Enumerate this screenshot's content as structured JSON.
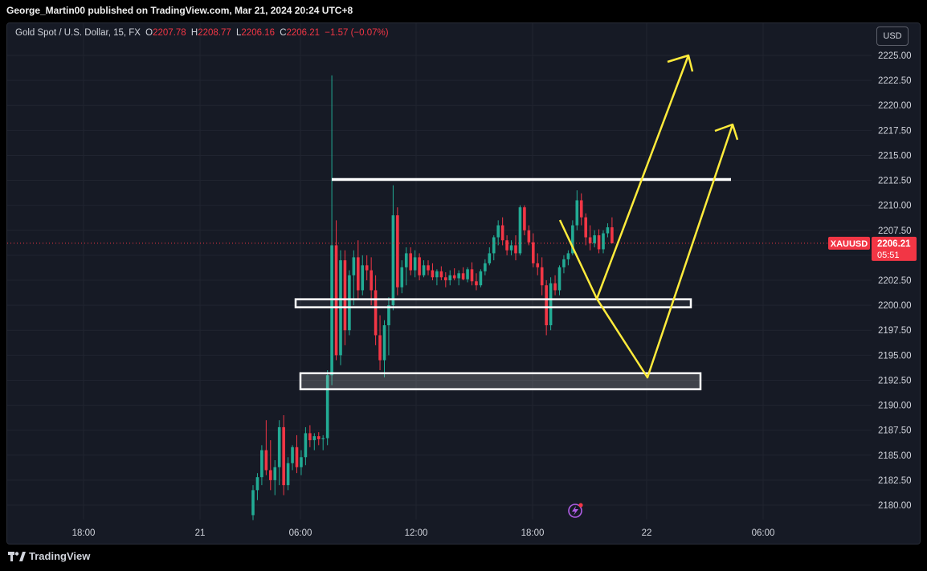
{
  "header": {
    "published_by": "George_Martin00 published on TradingView.com, Mar 21, 2024 20:24 UTC+8"
  },
  "legend": {
    "instrument": "Gold Spot / U.S. Dollar, 15, FX",
    "open_label": "O",
    "open": "2207.78",
    "high_label": "H",
    "high": "2208.77",
    "low_label": "L",
    "low": "2206.16",
    "close_label": "C",
    "close": "2206.21",
    "change": "−1.57 (−0.07%)"
  },
  "currency_button": "USD",
  "symbol_badge": "XAUUSD",
  "price_badge": {
    "price": "2206.21",
    "countdown": "05:51"
  },
  "footer": {
    "brand": "TradingView"
  },
  "colors": {
    "up": "#22ab94",
    "down": "#f23645",
    "annotation": "#ffeb3b",
    "background": "#161a25",
    "grid": "#202430",
    "text": "#d1d4dc"
  },
  "icons": [
    "tradingview-logo-icon",
    "lightning-alert-icon"
  ],
  "chart_data": {
    "type": "candlestick",
    "symbol": "XAUUSD",
    "interval": "15",
    "ylim": [
      2178.5,
      2226.5
    ],
    "y_ticks": [
      "2225.00",
      "2222.50",
      "2220.00",
      "2217.50",
      "2215.00",
      "2212.50",
      "2210.00",
      "2207.50",
      "2205.00",
      "2202.50",
      "2200.00",
      "2197.50",
      "2195.00",
      "2192.50",
      "2190.00",
      "2187.50",
      "2185.00",
      "2182.50",
      "2180.00"
    ],
    "x_ticks": [
      "18:00",
      "21",
      "06:00",
      "12:00",
      "18:00",
      "22",
      "06:00"
    ],
    "last_price": 2206.21,
    "ohlc": [
      [
        2179.0,
        2182.0,
        2178.5,
        2181.5
      ],
      [
        2181.5,
        2183.2,
        2180.5,
        2182.8
      ],
      [
        2182.8,
        2186.0,
        2182.0,
        2185.5
      ],
      [
        2185.5,
        2188.5,
        2183.0,
        2183.5
      ],
      [
        2183.5,
        2186.5,
        2181.5,
        2182.5
      ],
      [
        2182.5,
        2184.5,
        2181.0,
        2183.8
      ],
      [
        2183.8,
        2188.5,
        2182.0,
        2187.8
      ],
      [
        2187.8,
        2189.0,
        2181.0,
        2182.0
      ],
      [
        2182.0,
        2184.8,
        2181.5,
        2184.2
      ],
      [
        2184.2,
        2186.0,
        2183.5,
        2185.8
      ],
      [
        2185.8,
        2187.0,
        2183.2,
        2183.8
      ],
      [
        2183.8,
        2185.5,
        2183.0,
        2184.8
      ],
      [
        2184.8,
        2187.8,
        2184.0,
        2187.2
      ],
      [
        2187.2,
        2188.0,
        2185.8,
        2186.5
      ],
      [
        2186.5,
        2187.2,
        2185.5,
        2186.9
      ],
      [
        2186.9,
        2187.3,
        2186.0,
        2186.6
      ],
      [
        2186.6,
        2187.0,
        2185.5,
        2186.7
      ],
      [
        2186.7,
        2193.5,
        2186.0,
        2193.0
      ],
      [
        2193.0,
        2223.0,
        2192.0,
        2206.0
      ],
      [
        2206.0,
        2208.5,
        2194.5,
        2195.0
      ],
      [
        2195.0,
        2205.5,
        2194.0,
        2204.5
      ],
      [
        2204.5,
        2205.5,
        2196.0,
        2197.5
      ],
      [
        2197.5,
        2203.5,
        2197.0,
        2203.0
      ],
      [
        2203.0,
        2205.5,
        2200.0,
        2204.8
      ],
      [
        2204.8,
        2206.5,
        2200.5,
        2201.5
      ],
      [
        2201.5,
        2205.0,
        2201.0,
        2204.0
      ],
      [
        2204.0,
        2205.0,
        2202.5,
        2203.5
      ],
      [
        2203.5,
        2204.8,
        2200.0,
        2201.5
      ],
      [
        2201.5,
        2203.0,
        2196.0,
        2197.0
      ],
      [
        2197.0,
        2199.0,
        2193.5,
        2194.5
      ],
      [
        2194.5,
        2198.5,
        2192.8,
        2198.0
      ],
      [
        2198.0,
        2200.8,
        2195.0,
        2200.0
      ],
      [
        2200.0,
        2212.0,
        2199.5,
        2209.0
      ],
      [
        2209.0,
        2209.8,
        2201.0,
        2201.8
      ],
      [
        2201.8,
        2204.5,
        2201.2,
        2203.8
      ],
      [
        2203.8,
        2205.8,
        2202.0,
        2205.2
      ],
      [
        2205.2,
        2205.8,
        2203.0,
        2203.5
      ],
      [
        2203.5,
        2205.5,
        2202.8,
        2204.8
      ],
      [
        2204.8,
        2205.2,
        2202.5,
        2203.0
      ],
      [
        2203.0,
        2204.5,
        2202.8,
        2204.0
      ],
      [
        2204.0,
        2204.5,
        2203.0,
        2203.5
      ],
      [
        2203.5,
        2204.2,
        2202.5,
        2202.8
      ],
      [
        2202.8,
        2203.6,
        2202.0,
        2203.4
      ],
      [
        2203.4,
        2203.9,
        2202.5,
        2202.8
      ],
      [
        2202.8,
        2203.3,
        2201.8,
        2202.5
      ],
      [
        2202.5,
        2203.5,
        2202.0,
        2203.0
      ],
      [
        2203.0,
        2203.7,
        2202.5,
        2202.7
      ],
      [
        2202.7,
        2203.5,
        2202.0,
        2203.2
      ],
      [
        2203.2,
        2203.8,
        2202.5,
        2202.6
      ],
      [
        2202.6,
        2203.8,
        2202.3,
        2203.6
      ],
      [
        2203.6,
        2204.3,
        2202.0,
        2202.4
      ],
      [
        2202.4,
        2203.2,
        2201.5,
        2202.0
      ],
      [
        2202.0,
        2203.6,
        2201.8,
        2203.4
      ],
      [
        2203.4,
        2204.6,
        2203.0,
        2204.2
      ],
      [
        2204.2,
        2205.8,
        2204.0,
        2205.2
      ],
      [
        2205.2,
        2207.0,
        2204.5,
        2206.8
      ],
      [
        2206.8,
        2208.5,
        2206.0,
        2208.0
      ],
      [
        2208.0,
        2208.8,
        2206.0,
        2206.5
      ],
      [
        2206.5,
        2207.0,
        2205.0,
        2205.5
      ],
      [
        2205.5,
        2206.5,
        2205.0,
        2206.0
      ],
      [
        2206.0,
        2207.0,
        2204.5,
        2205.2
      ],
      [
        2205.2,
        2210.0,
        2205.0,
        2209.8
      ],
      [
        2209.8,
        2210.0,
        2207.0,
        2207.5
      ],
      [
        2207.5,
        2208.0,
        2206.0,
        2206.3
      ],
      [
        2206.3,
        2207.2,
        2203.8,
        2204.2
      ],
      [
        2204.2,
        2205.2,
        2203.0,
        2203.8
      ],
      [
        2203.8,
        2204.8,
        2201.0,
        2202.0
      ],
      [
        2202.0,
        2202.5,
        2197.0,
        2198.0
      ],
      [
        2198.0,
        2202.8,
        2197.5,
        2202.2
      ],
      [
        2202.2,
        2203.0,
        2201.0,
        2201.5
      ],
      [
        2201.5,
        2204.0,
        2201.0,
        2203.8
      ],
      [
        2203.8,
        2205.0,
        2203.2,
        2204.6
      ],
      [
        2204.6,
        2205.5,
        2204.0,
        2205.2
      ],
      [
        2205.2,
        2208.5,
        2205.0,
        2208.0
      ],
      [
        2208.0,
        2211.5,
        2207.5,
        2210.5
      ],
      [
        2210.5,
        2211.2,
        2208.0,
        2208.8
      ],
      [
        2208.8,
        2209.2,
        2206.0,
        2206.8
      ],
      [
        2206.8,
        2208.0,
        2205.5,
        2206.2
      ],
      [
        2206.2,
        2207.5,
        2205.8,
        2207.0
      ],
      [
        2207.0,
        2207.6,
        2205.2,
        2205.6
      ],
      [
        2205.6,
        2207.5,
        2205.2,
        2207.2
      ],
      [
        2207.2,
        2208.2,
        2206.8,
        2207.8
      ],
      [
        2207.8,
        2208.8,
        2206.2,
        2206.2
      ]
    ],
    "annotations": {
      "resistance_line": 2212.5,
      "support_zone_upper": [
        2199.8,
        2200.6
      ],
      "support_zone_lower": [
        2191.6,
        2193.2
      ]
    }
  }
}
